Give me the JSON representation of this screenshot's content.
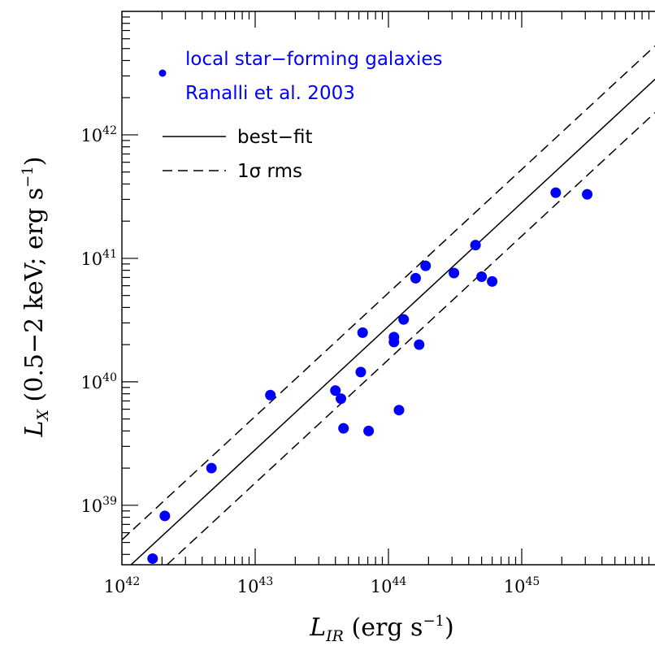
{
  "chart_data": {
    "type": "scatter",
    "x_scale": "log",
    "y_scale": "log",
    "xlim": [
      1e+42,
      1e+46
    ],
    "ylim": [
      3.3e+38,
      1e+43
    ],
    "x_ticks": [
      {
        "value": 1e+42,
        "base": "10",
        "exp": "42"
      },
      {
        "value": 1e+43,
        "base": "10",
        "exp": "43"
      },
      {
        "value": 1e+44,
        "base": "10",
        "exp": "44"
      },
      {
        "value": 1e+45,
        "base": "10",
        "exp": "45"
      }
    ],
    "y_ticks": [
      {
        "value": 1e+39,
        "base": "10",
        "exp": "39"
      },
      {
        "value": 1e+40,
        "base": "10",
        "exp": "40"
      },
      {
        "value": 1e+41,
        "base": "10",
        "exp": "41"
      },
      {
        "value": 1e+42,
        "base": "10",
        "exp": "42"
      }
    ],
    "xlabel": {
      "main": "L",
      "sub": "IR",
      "rest": "  (erg s",
      "exp": "−1",
      "close": ")"
    },
    "ylabel": {
      "main": "L",
      "sub": "X",
      "rest": "  (0.5−2 keV;  erg s",
      "exp": "−1",
      "close": ")"
    },
    "legend": {
      "placement": "top-left",
      "items": [
        {
          "kind": "marker",
          "label": "local star−forming galaxies",
          "color": "#0000ff"
        },
        {
          "kind": "text",
          "label": "Ranalli et al. 2003",
          "color": "#0000ff"
        },
        {
          "kind": "solid-line",
          "label": "best−fit",
          "color": "#000000"
        },
        {
          "kind": "dashed-line",
          "label": "1σ rms",
          "color": "#000000"
        }
      ]
    },
    "series": [
      {
        "name": "local star−forming galaxies",
        "color": "#0000ff",
        "points": [
          {
            "x": 1.7e+42,
            "y": 3.7e+38
          },
          {
            "x": 2.1e+42,
            "y": 8.2e+38
          },
          {
            "x": 4.7e+42,
            "y": 2e+39
          },
          {
            "x": 1.3e+43,
            "y": 7.8e+39
          },
          {
            "x": 4e+43,
            "y": 8.5e+39
          },
          {
            "x": 4.4e+43,
            "y": 7.3e+39
          },
          {
            "x": 4.6e+43,
            "y": 4.2e+39
          },
          {
            "x": 6.2e+43,
            "y": 1.2e+40
          },
          {
            "x": 6.4e+43,
            "y": 2.5e+40
          },
          {
            "x": 7.1e+43,
            "y": 4e+39
          },
          {
            "x": 1.1e+44,
            "y": 2.3e+40
          },
          {
            "x": 1.1e+44,
            "y": 2.1e+40
          },
          {
            "x": 1.2e+44,
            "y": 5.9e+39
          },
          {
            "x": 1.3e+44,
            "y": 3.2e+40
          },
          {
            "x": 1.6e+44,
            "y": 6.9e+40
          },
          {
            "x": 1.7e+44,
            "y": 2e+40
          },
          {
            "x": 1.9e+44,
            "y": 8.7e+40
          },
          {
            "x": 3.1e+44,
            "y": 7.6e+40
          },
          {
            "x": 4.5e+44,
            "y": 1.28e+41
          },
          {
            "x": 5e+44,
            "y": 7.1e+40
          },
          {
            "x": 6e+44,
            "y": 6.5e+40
          },
          {
            "x": 1.8e+45,
            "y": 3.4e+41
          },
          {
            "x": 3.1e+45,
            "y": 3.3e+41
          }
        ]
      }
    ],
    "fit": {
      "slope": 1.0,
      "log_norm": -3.55,
      "rms_dex": 0.27
    }
  }
}
